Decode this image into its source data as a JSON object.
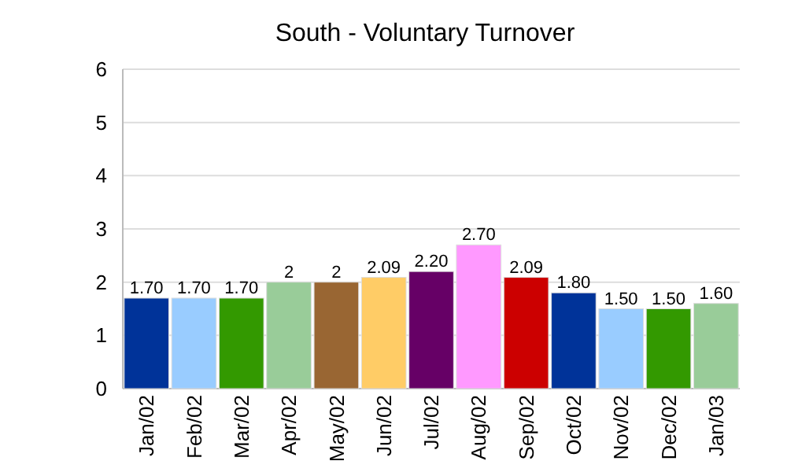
{
  "chart_data": {
    "type": "bar",
    "title": "South - Voluntary Turnover",
    "categories": [
      "Jan/02",
      "Feb/02",
      "Mar/02",
      "Apr/02",
      "May/02",
      "Jun/02",
      "Jul/02",
      "Aug/02",
      "Sep/02",
      "Oct/02",
      "Nov/02",
      "Dec/02",
      "Jan/03"
    ],
    "values": [
      1.7,
      1.7,
      1.7,
      2,
      2,
      2.09,
      2.2,
      2.7,
      2.09,
      1.8,
      1.5,
      1.5,
      1.6
    ],
    "value_labels": [
      "1.70",
      "1.70",
      "1.70",
      "2",
      "2",
      "2.09",
      "2.20",
      "2.70",
      "2.09",
      "1.80",
      "1.50",
      "1.50",
      "1.60"
    ],
    "colors": [
      "#003399",
      "#99ccff",
      "#339900",
      "#99cc99",
      "#996633",
      "#ffcc66",
      "#660066",
      "#ff99ff",
      "#cc0000",
      "#003399",
      "#99ccff",
      "#339900",
      "#99cc99"
    ],
    "ylim": [
      0,
      6
    ],
    "yticks": [
      0,
      1,
      2,
      3,
      4,
      5,
      6
    ],
    "grid": "y"
  }
}
